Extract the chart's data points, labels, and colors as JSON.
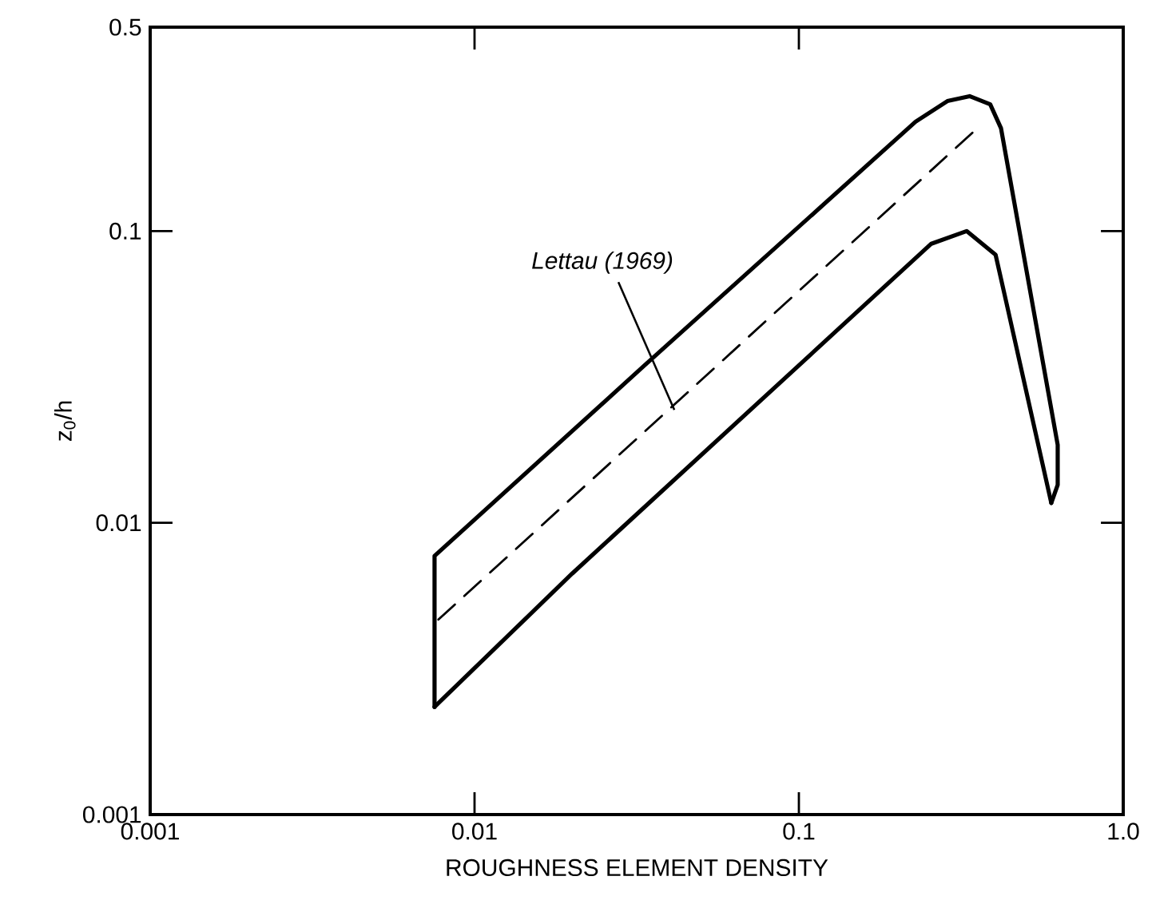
{
  "chart_data": {
    "type": "line",
    "xlabel": "ROUGHNESS ELEMENT DENSITY",
    "ylabel": "z$_{0}$/h",
    "log": "xy",
    "xlim": [
      0.001,
      1
    ],
    "ylim": [
      0.001,
      0.5
    ],
    "xticks": [
      0.001,
      0.01,
      0.1,
      {
        "value": 1,
        "label": "1.0"
      }
    ],
    "yticks": [
      0.001,
      0.01,
      0.1,
      0.5
    ],
    "series": [
      {
        "color": "#000000",
        "line_style": "solid",
        "x": [
          0.00753,
          0.00753,
          0.0333,
          0.229,
          0.287,
          0.336,
          0.389,
          0.42,
          0.628,
          0.628,
          0.6
        ],
        "values": [
          0.00234,
          0.0077,
          0.0345,
          0.237,
          0.279,
          0.29,
          0.272,
          0.225,
          0.0185,
          0.0135,
          0.0117
        ]
      },
      {
        "color": "#000000",
        "line_style": "solid",
        "x": [
          0.00753,
          0.02,
          0.256,
          0.329,
          0.404,
          0.436,
          0.6
        ],
        "values": [
          0.00234,
          0.0067,
          0.0905,
          0.1,
          0.083,
          0.057,
          0.0117
        ]
      },
      {
        "color": "#000000",
        "line_style": "dashed",
        "x": [
          0.00774,
          0.344
        ],
        "values": [
          0.00466,
          0.218
        ]
      }
    ],
    "annotations": [
      {
        "text": "Lettau (1969)",
        "x": 0.0413,
        "y": 0.0244
      }
    ]
  }
}
